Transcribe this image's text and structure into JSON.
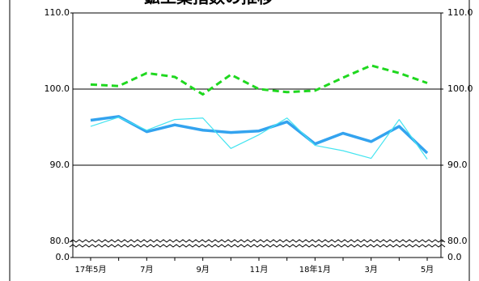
{
  "chart_data": {
    "type": "line",
    "title": "鉱工業指数の推移",
    "categories": [
      "17年5月",
      null,
      "7月",
      null,
      "9月",
      null,
      "11月",
      null,
      "18年1月",
      null,
      "3月",
      null,
      "5月"
    ],
    "series": [
      {
        "color": "#33a3ef",
        "style": "solid",
        "width": 3.5,
        "values": [
          95.9,
          96.4,
          94.4,
          95.3,
          94.6,
          94.3,
          94.5,
          95.7,
          92.8,
          94.2,
          93.1,
          95.1,
          91.6
        ]
      },
      {
        "color": "#44e4f0",
        "style": "solid",
        "width": 1.2,
        "values": [
          95.1,
          96.3,
          94.6,
          96.0,
          96.2,
          92.2,
          94.0,
          96.2,
          92.6,
          91.9,
          90.9,
          96.0,
          90.8
        ]
      },
      {
        "color": "#1fd81f",
        "style": "dashed",
        "width": 3,
        "values": [
          100.6,
          100.4,
          102.1,
          101.6,
          99.3,
          101.9,
          100.0,
          99.6,
          99.8,
          101.5,
          103.1,
          102.1,
          100.8
        ]
      }
    ],
    "ylim": [
      0,
      110
    ],
    "axis_break": [
      0,
      80
    ],
    "yticks": [
      {
        "value": 110,
        "label": "110.0"
      },
      {
        "value": 100,
        "label": "100.0"
      },
      {
        "value": 90,
        "label": "90.0"
      },
      {
        "value": 80,
        "label": "80.0"
      },
      {
        "value": 0,
        "label": "0.0"
      }
    ],
    "y2lim": [
      0,
      110
    ],
    "y2ticks": [
      {
        "value": 110,
        "label": "110.0"
      },
      {
        "value": 100,
        "label": "100.0"
      },
      {
        "value": 90,
        "label": "90.0"
      },
      {
        "value": 80,
        "label": "80.0"
      },
      {
        "value": 0,
        "label": "0.0"
      }
    ],
    "grid": true
  }
}
